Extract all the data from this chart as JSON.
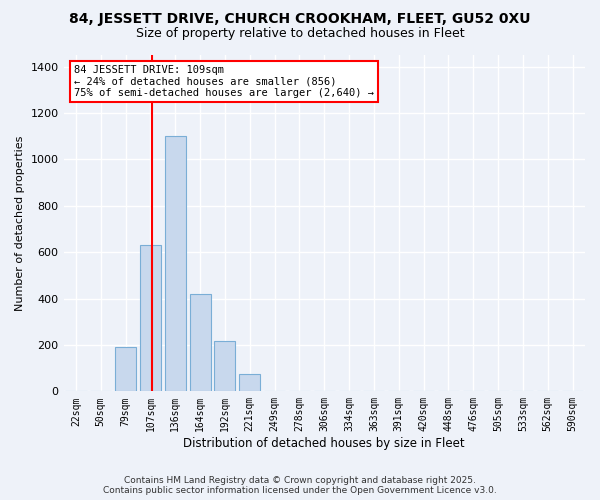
{
  "title_line1": "84, JESSETT DRIVE, CHURCH CROOKHAM, FLEET, GU52 0XU",
  "title_line2": "Size of property relative to detached houses in Fleet",
  "xlabel": "Distribution of detached houses by size in Fleet",
  "ylabel": "Number of detached properties",
  "categories": [
    "22sqm",
    "50sqm",
    "79sqm",
    "107sqm",
    "136sqm",
    "164sqm",
    "192sqm",
    "221sqm",
    "249sqm",
    "278sqm",
    "306sqm",
    "334sqm",
    "363sqm",
    "391sqm",
    "420sqm",
    "448sqm",
    "476sqm",
    "505sqm",
    "533sqm",
    "562sqm",
    "590sqm"
  ],
  "values": [
    0,
    0,
    190,
    630,
    1100,
    420,
    215,
    75,
    0,
    0,
    0,
    0,
    0,
    0,
    0,
    0,
    0,
    0,
    0,
    0,
    0
  ],
  "bar_color": "#c8d8ed",
  "bar_edge_color": "#7aaed6",
  "red_line_index": 3.08,
  "annotation_text": "84 JESSETT DRIVE: 109sqm\n← 24% of detached houses are smaller (856)\n75% of semi-detached houses are larger (2,640) →",
  "ylim": [
    0,
    1450
  ],
  "yticks": [
    0,
    200,
    400,
    600,
    800,
    1000,
    1200,
    1400
  ],
  "background_color": "#eef2f9",
  "grid_color": "#ffffff",
  "footer": "Contains HM Land Registry data © Crown copyright and database right 2025.\nContains public sector information licensed under the Open Government Licence v3.0.",
  "title_fontsize": 10,
  "subtitle_fontsize": 9
}
